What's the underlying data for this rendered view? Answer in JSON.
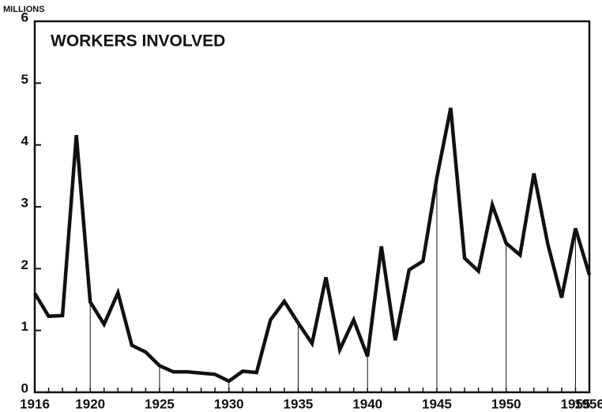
{
  "chart_data": {
    "type": "line",
    "title": "WORKERS INVOLVED",
    "y_label": "MILLIONS",
    "x": [
      1916,
      1917,
      1918,
      1919,
      1920,
      1921,
      1922,
      1923,
      1924,
      1925,
      1926,
      1927,
      1928,
      1929,
      1930,
      1931,
      1932,
      1933,
      1934,
      1935,
      1936,
      1937,
      1938,
      1939,
      1940,
      1941,
      1942,
      1943,
      1944,
      1945,
      1946,
      1947,
      1948,
      1949,
      1950,
      1951,
      1952,
      1953,
      1954,
      1955,
      1956
    ],
    "series": [
      {
        "name": "WORKERS INVOLVED",
        "color": "#111111",
        "values": [
          1.6,
          1.23,
          1.24,
          4.16,
          1.46,
          1.1,
          1.61,
          0.76,
          0.65,
          0.43,
          0.33,
          0.33,
          0.31,
          0.29,
          0.18,
          0.34,
          0.32,
          1.17,
          1.47,
          1.12,
          0.79,
          1.86,
          0.69,
          1.17,
          0.58,
          2.36,
          0.84,
          1.98,
          2.12,
          3.47,
          4.6,
          2.17,
          1.96,
          3.03,
          2.41,
          2.22,
          3.54,
          2.4,
          1.53,
          2.65,
          1.9
        ]
      }
    ],
    "xlim": [
      1916,
      1956
    ],
    "xticks": [
      1916,
      1920,
      1925,
      1930,
      1935,
      1940,
      1945,
      1950,
      1955,
      1956
    ],
    "ylim": [
      0,
      6
    ],
    "yticks": [
      0,
      1,
      2,
      3,
      4,
      5,
      6
    ]
  }
}
